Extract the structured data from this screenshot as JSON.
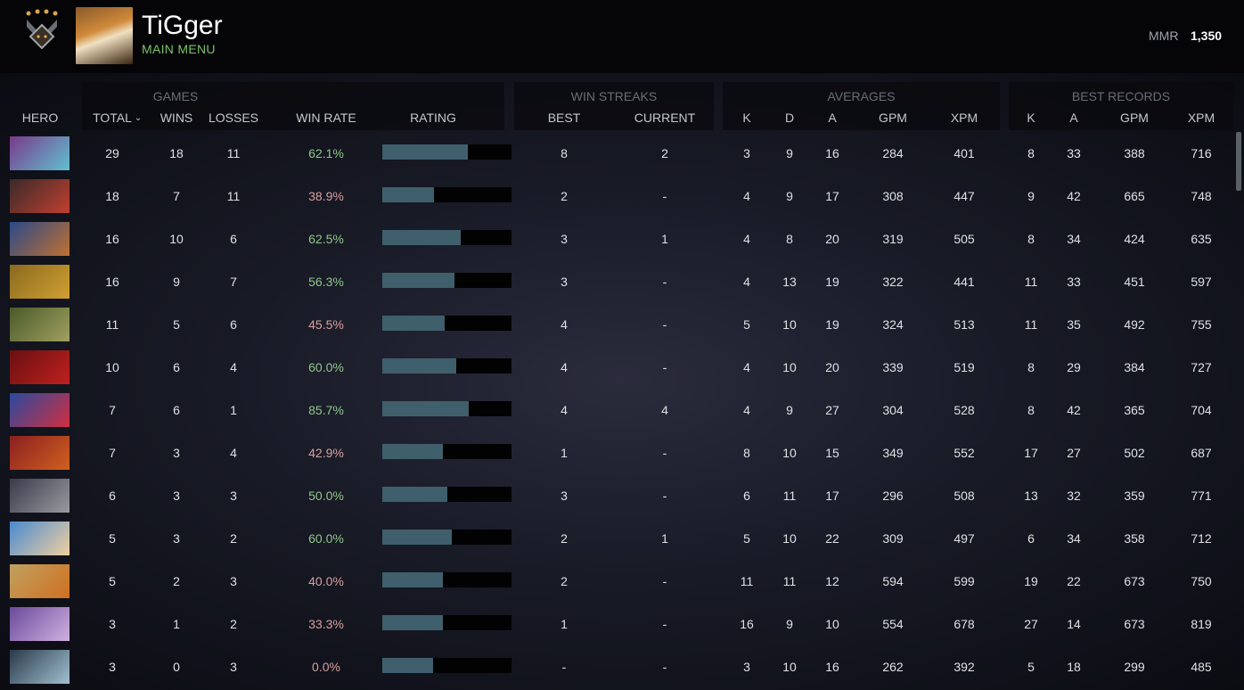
{
  "player": {
    "name": "TiGger",
    "subtitle": "MAIN MENU",
    "mmr_label": "MMR",
    "mmr_value": "1,350"
  },
  "colors": {
    "win_good": "#8fc78a",
    "win_bad": "#d9a0a0",
    "rating_bar": "#3f5f6c",
    "subtitle": "#7cc26a"
  },
  "groups": {
    "games": "GAMES",
    "streaks": "WIN STREAKS",
    "averages": "AVERAGES",
    "best": "BEST RECORDS"
  },
  "headers": {
    "hero": "HERO",
    "total": "TOTAL",
    "sort_icon": "chevron-down-icon",
    "wins": "WINS",
    "losses": "LOSSES",
    "winrate": "WIN RATE",
    "rating": "RATING",
    "best": "BEST",
    "current": "CURRENT",
    "k": "K",
    "d": "D",
    "a": "A",
    "gpm": "GPM",
    "xpm": "XPM",
    "bk": "K",
    "ba": "A",
    "bgpm": "GPM",
    "bxpm": "XPM"
  },
  "rows": [
    {
      "total": "29",
      "wins": "18",
      "losses": "11",
      "winrate": "62.1%",
      "rating": 0.66,
      "best": "8",
      "current": "2",
      "k": "3",
      "d": "9",
      "a": "16",
      "gpm": "284",
      "xpm": "401",
      "bk": "8",
      "ba": "33",
      "bgpm": "388",
      "bxpm": "716",
      "c1": "#7a3a8a",
      "c2": "#60c0d0"
    },
    {
      "total": "18",
      "wins": "7",
      "losses": "11",
      "winrate": "38.9%",
      "rating": 0.4,
      "best": "2",
      "current": "-",
      "k": "4",
      "d": "9",
      "a": "17",
      "gpm": "308",
      "xpm": "447",
      "bk": "9",
      "ba": "42",
      "bgpm": "665",
      "bxpm": "748",
      "c1": "#3a2a2a",
      "c2": "#c04030"
    },
    {
      "total": "16",
      "wins": "10",
      "losses": "6",
      "winrate": "62.5%",
      "rating": 0.61,
      "best": "3",
      "current": "1",
      "k": "4",
      "d": "8",
      "a": "20",
      "gpm": "319",
      "xpm": "505",
      "bk": "8",
      "ba": "34",
      "bgpm": "424",
      "bxpm": "635",
      "c1": "#2a4a8a",
      "c2": "#c07030"
    },
    {
      "total": "16",
      "wins": "9",
      "losses": "7",
      "winrate": "56.3%",
      "rating": 0.56,
      "best": "3",
      "current": "-",
      "k": "4",
      "d": "13",
      "a": "19",
      "gpm": "322",
      "xpm": "441",
      "bk": "11",
      "ba": "33",
      "bgpm": "451",
      "bxpm": "597",
      "c1": "#8a6a20",
      "c2": "#d0a030"
    },
    {
      "total": "11",
      "wins": "5",
      "losses": "6",
      "winrate": "45.5%",
      "rating": 0.48,
      "best": "4",
      "current": "-",
      "k": "5",
      "d": "10",
      "a": "19",
      "gpm": "324",
      "xpm": "513",
      "bk": "11",
      "ba": "35",
      "bgpm": "492",
      "bxpm": "755",
      "c1": "#4a5a2a",
      "c2": "#a0a060"
    },
    {
      "total": "10",
      "wins": "6",
      "losses": "4",
      "winrate": "60.0%",
      "rating": 0.57,
      "best": "4",
      "current": "-",
      "k": "4",
      "d": "10",
      "a": "20",
      "gpm": "339",
      "xpm": "519",
      "bk": "8",
      "ba": "29",
      "bgpm": "384",
      "bxpm": "727",
      "c1": "#6a1010",
      "c2": "#c02020"
    },
    {
      "total": "7",
      "wins": "6",
      "losses": "1",
      "winrate": "85.7%",
      "rating": 0.67,
      "best": "4",
      "current": "4",
      "k": "4",
      "d": "9",
      "a": "27",
      "gpm": "304",
      "xpm": "528",
      "bk": "8",
      "ba": "42",
      "bgpm": "365",
      "bxpm": "704",
      "c1": "#2a4aa0",
      "c2": "#d03040"
    },
    {
      "total": "7",
      "wins": "3",
      "losses": "4",
      "winrate": "42.9%",
      "rating": 0.47,
      "best": "1",
      "current": "-",
      "k": "8",
      "d": "10",
      "a": "15",
      "gpm": "349",
      "xpm": "552",
      "bk": "17",
      "ba": "27",
      "bgpm": "502",
      "bxpm": "687",
      "c1": "#8a2020",
      "c2": "#d06020"
    },
    {
      "total": "6",
      "wins": "3",
      "losses": "3",
      "winrate": "50.0%",
      "rating": 0.5,
      "best": "3",
      "current": "-",
      "k": "6",
      "d": "11",
      "a": "17",
      "gpm": "296",
      "xpm": "508",
      "bk": "13",
      "ba": "32",
      "bgpm": "359",
      "bxpm": "771",
      "c1": "#3a3a4a",
      "c2": "#9a9aa0"
    },
    {
      "total": "5",
      "wins": "3",
      "losses": "2",
      "winrate": "60.0%",
      "rating": 0.54,
      "best": "2",
      "current": "1",
      "k": "5",
      "d": "10",
      "a": "22",
      "gpm": "309",
      "xpm": "497",
      "bk": "6",
      "ba": "34",
      "bgpm": "358",
      "bxpm": "712",
      "c1": "#4a8ad0",
      "c2": "#f0d0a0"
    },
    {
      "total": "5",
      "wins": "2",
      "losses": "3",
      "winrate": "40.0%",
      "rating": 0.47,
      "best": "2",
      "current": "-",
      "k": "11",
      "d": "11",
      "a": "12",
      "gpm": "594",
      "xpm": "599",
      "bk": "19",
      "ba": "22",
      "bgpm": "673",
      "bxpm": "750",
      "c1": "#c0a060",
      "c2": "#d07020"
    },
    {
      "total": "3",
      "wins": "1",
      "losses": "2",
      "winrate": "33.3%",
      "rating": 0.47,
      "best": "1",
      "current": "-",
      "k": "16",
      "d": "9",
      "a": "10",
      "gpm": "554",
      "xpm": "678",
      "bk": "27",
      "ba": "14",
      "bgpm": "673",
      "bxpm": "819",
      "c1": "#6a4a9a",
      "c2": "#d0b0e0"
    },
    {
      "total": "3",
      "wins": "0",
      "losses": "3",
      "winrate": "0.0%",
      "rating": 0.39,
      "best": "-",
      "current": "-",
      "k": "3",
      "d": "10",
      "a": "16",
      "gpm": "262",
      "xpm": "392",
      "bk": "5",
      "ba": "18",
      "bgpm": "299",
      "bxpm": "485",
      "c1": "#2a3a4a",
      "c2": "#a0c0d0"
    }
  ]
}
